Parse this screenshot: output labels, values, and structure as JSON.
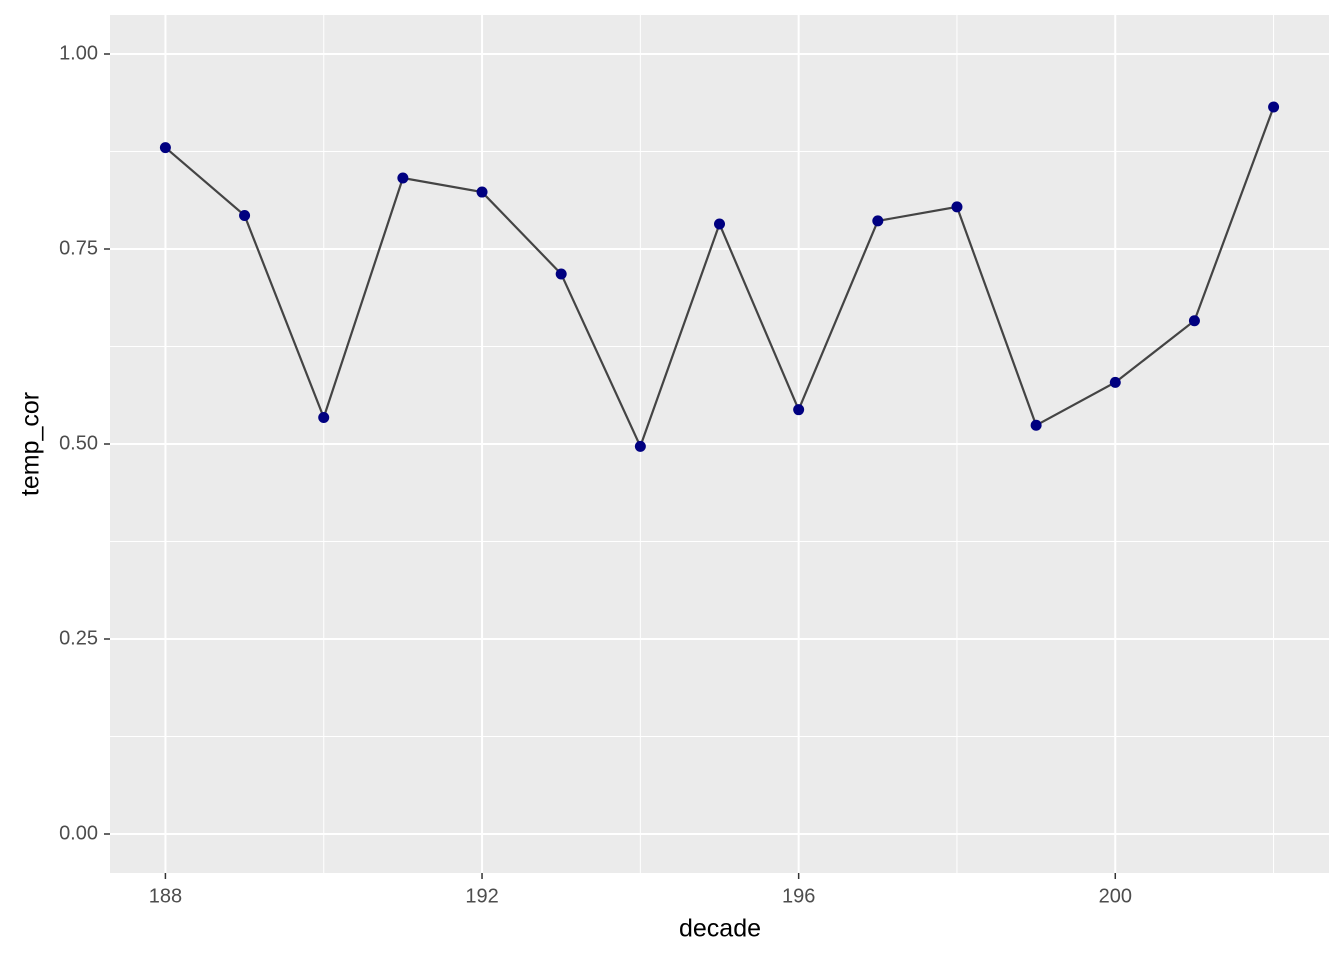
{
  "chart_data": {
    "type": "line",
    "x_label": "decade",
    "y_label": "temp_cor",
    "x": [
      188,
      189,
      190,
      191,
      192,
      193,
      194,
      195,
      196,
      197,
      198,
      199,
      200,
      201,
      202
    ],
    "series": [
      {
        "values": [
          0.88,
          0.793,
          0.534,
          0.841,
          0.823,
          0.718,
          0.497,
          0.782,
          0.544,
          0.786,
          0.804,
          0.524,
          0.579,
          0.658,
          0.932
        ],
        "line_color": "#444444",
        "color": "#000080"
      }
    ],
    "xlim": [
      187.3,
      202.7
    ],
    "xticks": [
      188,
      192,
      196,
      200
    ],
    "ylim": [
      -0.05,
      1.05
    ],
    "yticks": [
      {
        "value": 0,
        "label": "0.00"
      },
      {
        "value": 0.25,
        "label": "0.25"
      },
      {
        "value": 0.5,
        "label": "0.50"
      },
      {
        "value": 0.75,
        "label": "0.75"
      },
      {
        "value": 1,
        "label": "1.00"
      }
    ],
    "grid": true
  }
}
